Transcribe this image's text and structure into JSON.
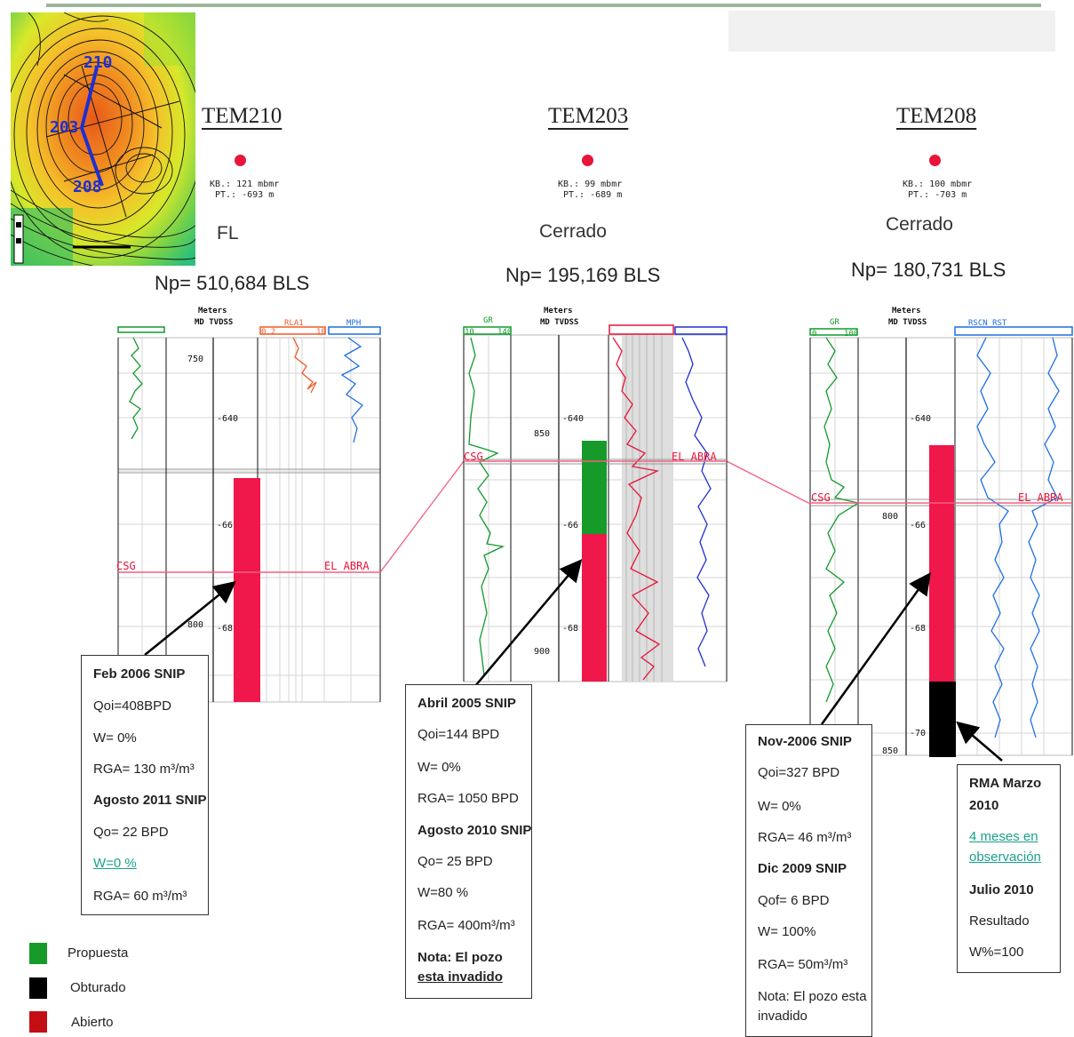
{
  "wells": [
    {
      "name": "TEM210",
      "kb": "KB.: 121 mbmr",
      "pt": "PT.: -693 m",
      "status": "FL",
      "np": "Np= 510,684 BLS"
    },
    {
      "name": "TEM203",
      "kb": "KB.: 99 mbmr",
      "pt": "PT.: -689 m",
      "status": "Cerrado",
      "np": "Np= 195,169 BLS"
    },
    {
      "name": "TEM208",
      "kb": "KB.: 100 mbmr",
      "pt": "PT.: -703 m",
      "status": "Cerrado",
      "np": "Np= 180,731 BLS"
    }
  ],
  "map": {
    "labels": [
      "210",
      "203",
      "208"
    ]
  },
  "tracks": {
    "header_meters": "Meters",
    "header_depth": "MD TVDSS",
    "t1": {
      "d1": "750",
      "d2": "-640",
      "d3": "-66",
      "d4": "800",
      "d5": "-68",
      "curve_left": "",
      "curve_right1": "RLA1",
      "range_left": "0.2",
      "range_right": "10",
      "curve_right2": "MPH"
    },
    "t2": {
      "gr": "GR",
      "gr_min": "10",
      "gr_max": "140",
      "d1": "-640",
      "d2": "850",
      "d3": "-66",
      "d4": "-68",
      "d5": "900"
    },
    "t3": {
      "gr": "GR",
      "gr_min": "0",
      "gr_max": "100",
      "d1": "-640",
      "d2": "800",
      "d3": "-66",
      "d4": "-68",
      "d5": "-70",
      "d6": "850",
      "curve_right": "RSCN_RST"
    },
    "csg": "CSG",
    "abra": "EL ABRA"
  },
  "boxes": {
    "b1": {
      "l1": "Feb 2006 SNIP",
      "l2": "Qoi=408BPD",
      "l3": "W= 0%",
      "l4": "RGA= 130 m³/m³",
      "l5": "Agosto 2011 SNIP",
      "l6": "Qo= 22 BPD",
      "l7": "W=0 %",
      "l8": "RGA= 60 m³/m³"
    },
    "b2": {
      "l1": "Abril 2005 SNIP",
      "l2": "Qoi=144 BPD",
      "l3": "W= 0%",
      "l4": "RGA= 1050 BPD",
      "l5": "Agosto 2010 SNIP",
      "l6": "Qo= 25 BPD",
      "l7": "W=80 %",
      "l8": "RGA= 400m³/m³",
      "l9": "Nota: El pozo",
      "l10": "esta invadido"
    },
    "b3": {
      "l1": "Nov-2006 SNIP",
      "l2": "Qoi=327 BPD",
      "l3": "W= 0%",
      "l4": "RGA= 46 m³/m³",
      "l5": "Dic  2009 SNIP",
      "l6": "Qof= 6 BPD",
      "l7": "W= 100%",
      "l8": "RGA= 50m³/m³",
      "l9": "Nota: El pozo esta",
      "l10": "invadido"
    },
    "b4": {
      "l1": "RMA Marzo",
      "l2": "2010",
      "l3": "4 meses en",
      "l4": "observación",
      "l5": "Julio 2010",
      "l6": "Resultado",
      "l7": "W%=100"
    }
  },
  "legend": [
    {
      "label": "Propuesta",
      "color": "#169a2a"
    },
    {
      "label": "Obturado",
      "color": "#000000"
    },
    {
      "label": "Abierto",
      "color": "#c30f14"
    }
  ],
  "colors": {
    "open_interval": "#f0174a",
    "proposed_interval": "#169a2a",
    "plugged_interval": "#000000",
    "correlation": "#f06080"
  }
}
